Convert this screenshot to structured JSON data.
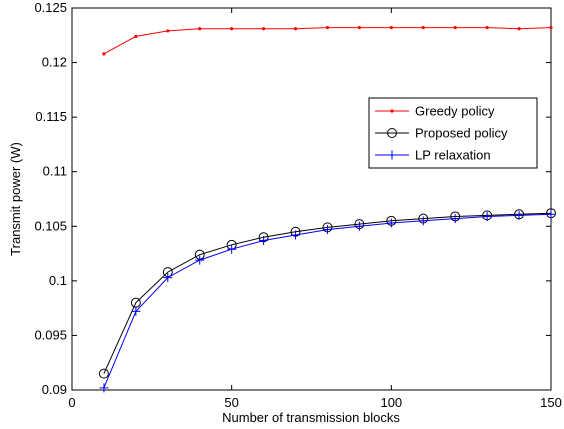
{
  "chart_data": {
    "type": "line",
    "title": "",
    "xlabel": "Number of transmission blocks",
    "ylabel": "Transmit power (W)",
    "xlim": [
      0,
      150
    ],
    "ylim": [
      0.09,
      0.125
    ],
    "xticks": [
      0,
      50,
      100,
      150
    ],
    "xtick_labels": [
      "0",
      "50",
      "100",
      "150"
    ],
    "yticks": [
      0.09,
      0.095,
      0.1,
      0.105,
      0.11,
      0.115,
      0.12,
      0.125
    ],
    "ytick_labels": [
      "0.09",
      "0.095",
      "0.1",
      "0.105",
      "0.11",
      "0.115",
      "0.12",
      "0.125"
    ],
    "grid": false,
    "legend_position": "right",
    "x": [
      10,
      20,
      30,
      40,
      50,
      60,
      70,
      80,
      90,
      100,
      110,
      120,
      130,
      140,
      150
    ],
    "series": [
      {
        "name": "Greedy policy",
        "color": "#ff0000",
        "marker": "dot",
        "values": [
          0.1208,
          0.1224,
          0.1229,
          0.1231,
          0.1231,
          0.1231,
          0.1231,
          0.1232,
          0.1232,
          0.1232,
          0.1232,
          0.1232,
          0.1232,
          0.1231,
          0.1232
        ]
      },
      {
        "name": "Proposed policy",
        "color": "#000000",
        "marker": "circle",
        "values": [
          0.0915,
          0.098,
          0.1008,
          0.1024,
          0.1033,
          0.104,
          0.1045,
          0.1049,
          0.1052,
          0.1055,
          0.1057,
          0.1059,
          0.106,
          0.1061,
          0.1062
        ]
      },
      {
        "name": "LP relaxation",
        "color": "#0000ff",
        "marker": "plus",
        "values": [
          0.0902,
          0.0972,
          0.1003,
          0.1019,
          0.1029,
          0.1037,
          0.1042,
          0.1047,
          0.105,
          0.1053,
          0.1055,
          0.1057,
          0.1059,
          0.106,
          0.1061
        ]
      }
    ]
  }
}
